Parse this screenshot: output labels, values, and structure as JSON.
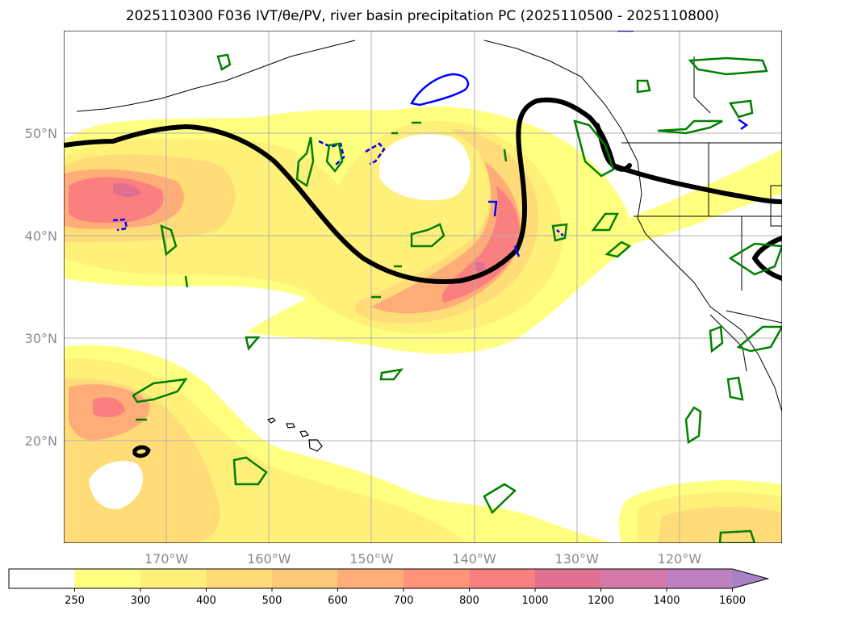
{
  "title": "2025110300 F036 IVT/θe/PV, river basin precipitation PC (2025110500 - 2025110800)",
  "map": {
    "lon_range": [
      -180,
      -110
    ],
    "lat_range": [
      10,
      60
    ],
    "lat_ticks": [
      "20°N",
      "30°N",
      "40°N",
      "50°N"
    ],
    "lon_ticks": [
      "170°W",
      "160°W",
      "150°W",
      "140°W",
      "130°W",
      "120°W"
    ],
    "grid": true
  },
  "colorbar": {
    "levels": [
      "250",
      "300",
      "400",
      "500",
      "600",
      "700",
      "800",
      "1000",
      "1200",
      "1400",
      "1600"
    ],
    "colors": [
      "#ffffff",
      "#ffff80",
      "#fff07a",
      "#ffdc78",
      "#ffc878",
      "#ffad78",
      "#ff9478",
      "#fa8080",
      "#e07090",
      "#d57aa8",
      "#be80c0",
      "#a882c8"
    ],
    "extend": "max"
  },
  "legend_colors": {
    "theta_e_contour": "#000000",
    "pv_contour": "#0000ff",
    "precip_pc": "#008000"
  }
}
